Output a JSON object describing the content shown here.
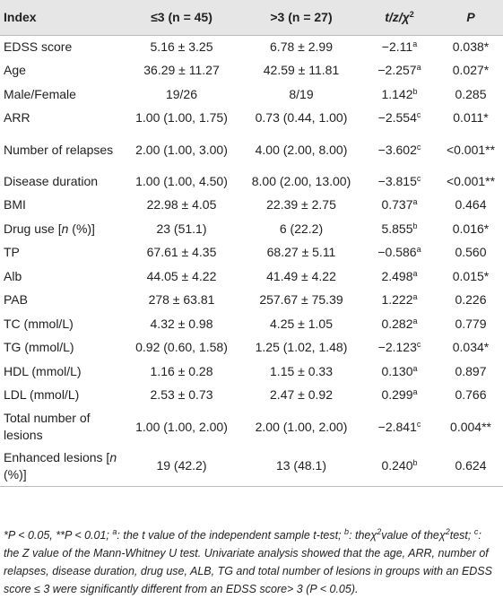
{
  "header": {
    "index": "Index",
    "group1": "≤3 (n = 45)",
    "group2": ">3 (n = 27)",
    "stat": "t/z/χ",
    "stat_sup": "2",
    "p": "P"
  },
  "rows": [
    {
      "label": "EDSS score",
      "g1": "5.16 ± 3.25",
      "g2": "6.78 ± 2.99",
      "stat": "−2.11",
      "sup": "a",
      "p": "0.038*"
    },
    {
      "label": "Age",
      "g1": "36.29 ± 11.27",
      "g2": "42.59 ± 11.81",
      "stat": "−2.257",
      "sup": "a",
      "p": "0.027*"
    },
    {
      "label": "Male/Female",
      "g1": "19/26",
      "g2": "8/19",
      "stat": "1.142",
      "sup": "b",
      "p": "0.285"
    },
    {
      "label": "ARR",
      "g1": "1.00 (1.00, 1.75)",
      "g2": "0.73 (0.44, 1.00)",
      "stat": "−2.554",
      "sup": "c",
      "p": "0.011*"
    },
    {
      "label": "Number of relapses",
      "g1": "2.00 (1.00, 3.00)",
      "g2": "4.00 (2.00, 8.00)",
      "stat": "−3.602",
      "sup": "c",
      "p": "<0.001**"
    },
    {
      "label": "Disease duration",
      "g1": "1.00 (1.00, 4.50)",
      "g2": "8.00 (2.00, 13.00)",
      "stat": "−3.815",
      "sup": "c",
      "p": "<0.001**"
    },
    {
      "label": "BMI",
      "g1": "22.98 ± 4.05",
      "g2": "22.39 ± 2.75",
      "stat": "0.737",
      "sup": "a",
      "p": "0.464"
    },
    {
      "label_pre": "Drug use [",
      "label_it": "n",
      "label_post": " (%)]",
      "g1": "23 (51.1)",
      "g2": "6 (22.2)",
      "stat": "5.855",
      "sup": "b",
      "p": "0.016*"
    },
    {
      "label": "TP",
      "g1": "67.61 ± 4.35",
      "g2": "68.27 ± 5.11",
      "stat": "−0.586",
      "sup": "a",
      "p": "0.560"
    },
    {
      "label": "Alb",
      "g1": "44.05 ± 4.22",
      "g2": "41.49 ± 4.22",
      "stat": "2.498",
      "sup": "a",
      "p": "0.015*"
    },
    {
      "label": "PAB",
      "g1": "278 ± 63.81",
      "g2": "257.67 ± 75.39",
      "stat": "1.222",
      "sup": "a",
      "p": "0.226"
    },
    {
      "label": "TC (mmol/L)",
      "g1": "4.32 ± 0.98",
      "g2": "4.25 ± 1.05",
      "stat": "0.282",
      "sup": "a",
      "p": "0.779"
    },
    {
      "label": "TG (mmol/L)",
      "g1": "0.92 (0.60, 1.58)",
      "g2": "1.25 (1.02, 1.48)",
      "stat": "−2.123",
      "sup": "c",
      "p": "0.034*"
    },
    {
      "label": "HDL (mmol/L)",
      "g1": "1.16 ± 0.28",
      "g2": "1.15 ± 0.33",
      "stat": "0.130",
      "sup": "a",
      "p": "0.897"
    },
    {
      "label": "LDL (mmol/L)",
      "g1": "2.53 ± 0.73",
      "g2": "2.47 ± 0.92",
      "stat": "0.299",
      "sup": "a",
      "p": "0.766"
    },
    {
      "label": "Total number of lesions",
      "g1": "1.00 (1.00, 2.00)",
      "g2": "2.00 (1.00, 2.00)",
      "stat": "−2.841",
      "sup": "c",
      "p": "0.004**"
    },
    {
      "label_pre": "Enhanced lesions [",
      "label_it": "n",
      "label_post": " (%)]",
      "g1": "19 (42.2)",
      "g2": "13 (48.1)",
      "stat": "0.240",
      "sup": "b",
      "p": "0.624"
    }
  ],
  "footnote": {
    "part1": "*P < 0.05, **P < 0.01; ",
    "sup_a": "a",
    "part2": ": the t value of the independent sample t-test; ",
    "sup_b": "b",
    "part3": ": theχ",
    "sup_2a": "2",
    "part4": "value of theχ",
    "sup_2b": "2",
    "part5": "test; ",
    "sup_c": "c",
    "part6": ": the Z value of the Mann-Whitney U test. Univariate analysis showed that the age, ARR, number of relapses, disease duration, drug use, ALB, TG and total number of lesions in groups with an EDSS score ≤ 3 were significantly different from an EDSS score> 3 (P < 0.05)."
  }
}
